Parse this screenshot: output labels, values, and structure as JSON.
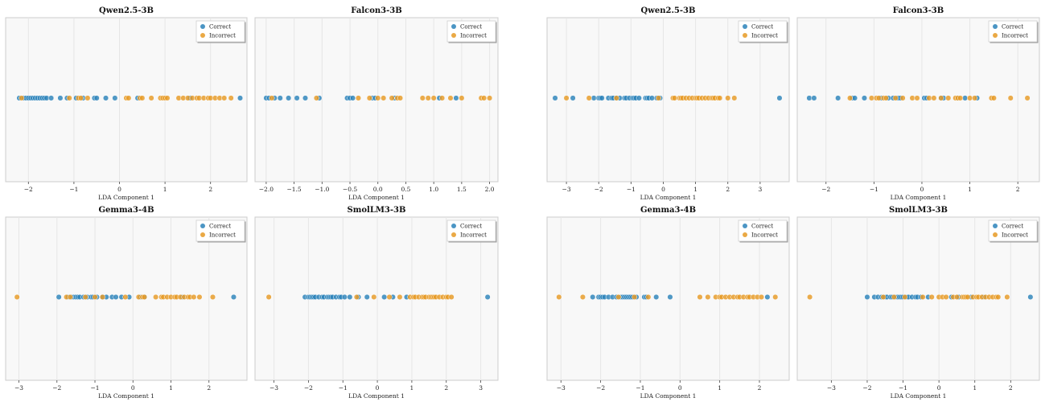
{
  "colors": {
    "correct": "#2b83ba",
    "incorrect": "#e69a24"
  },
  "chart_data": [
    {
      "type": "scatter",
      "title": "Qwen2.5-3B",
      "xlabel": "LDA Component 1",
      "xlim": [
        -2.5,
        2.8
      ],
      "xticks": [
        -2,
        -1,
        0,
        1,
        2
      ],
      "tick_labels": [
        "−2",
        "−1",
        "0",
        "1",
        "2"
      ],
      "legend": {
        "position": "top-right",
        "entries": [
          "Correct",
          "Incorrect"
        ]
      },
      "series": [
        {
          "name": "Correct",
          "values": [
            -2.2,
            -2.1,
            -2.05,
            -2.0,
            -1.95,
            -1.9,
            -1.85,
            -1.8,
            -1.75,
            -1.7,
            -1.65,
            -1.6,
            -1.5,
            -1.3,
            -1.15,
            -0.95,
            -0.8,
            -0.55,
            -0.5,
            -0.3,
            -0.1,
            0.4,
            1.55,
            2.65
          ]
        },
        {
          "name": "Incorrect",
          "values": [
            -2.15,
            -1.1,
            -0.9,
            -0.85,
            -0.7,
            0.15,
            0.2,
            0.45,
            0.5,
            0.7,
            0.9,
            0.95,
            1.0,
            1.05,
            1.3,
            1.4,
            1.5,
            1.6,
            1.7,
            1.75,
            1.85,
            1.95,
            2.0,
            2.1,
            2.2,
            2.3,
            2.45
          ]
        }
      ]
    },
    {
      "type": "scatter",
      "title": "Falcon3-3B",
      "xlabel": "LDA Component 1",
      "xlim": [
        -2.2,
        2.15
      ],
      "xticks": [
        -2.0,
        -1.5,
        -1.0,
        -0.5,
        0.0,
        0.5,
        1.0,
        1.5,
        2.0
      ],
      "tick_labels": [
        "−2.0",
        "−1.5",
        "−1.0",
        "−0.5",
        "0.0",
        "0.5",
        "1.0",
        "1.5",
        "2.0"
      ],
      "legend": {
        "position": "top-right",
        "entries": [
          "Correct",
          "Incorrect"
        ]
      },
      "series": [
        {
          "name": "Correct",
          "values": [
            -2.0,
            -1.95,
            -1.85,
            -1.75,
            -1.6,
            -1.45,
            -1.3,
            -1.05,
            -0.55,
            -0.5,
            -0.45,
            -0.1,
            -0.05,
            0.3,
            1.1,
            1.4
          ]
        },
        {
          "name": "Incorrect",
          "values": [
            -1.9,
            -1.1,
            -0.35,
            -0.15,
            0.0,
            0.1,
            0.25,
            0.35,
            0.4,
            0.8,
            0.9,
            1.0,
            1.15,
            1.3,
            1.5,
            1.85,
            1.9,
            2.0
          ]
        }
      ]
    },
    {
      "type": "scatter",
      "title": "Qwen2.5-3B",
      "xlabel": "LDA Component 1",
      "xlim": [
        -3.6,
        3.9
      ],
      "xticks": [
        -3,
        -2,
        -1,
        0,
        1,
        2,
        3
      ],
      "tick_labels": [
        "−3",
        "−2",
        "−1",
        "0",
        "1",
        "2",
        "3"
      ],
      "legend": {
        "position": "top-right",
        "entries": [
          "Correct",
          "Incorrect"
        ]
      },
      "series": [
        {
          "name": "Correct",
          "values": [
            -3.35,
            -2.8,
            -2.15,
            -2.0,
            -1.95,
            -1.9,
            -1.7,
            -1.6,
            -1.55,
            -1.45,
            -1.35,
            -1.2,
            -1.15,
            -1.05,
            -0.95,
            -0.9,
            -0.85,
            -0.75,
            -0.55,
            -0.5,
            -0.45,
            -0.35,
            -0.2,
            -0.1,
            3.6
          ]
        },
        {
          "name": "Incorrect",
          "values": [
            -3.0,
            -2.3,
            -1.45,
            -0.15,
            0.3,
            0.35,
            0.5,
            0.55,
            0.6,
            0.7,
            0.8,
            0.9,
            1.0,
            1.05,
            1.1,
            1.2,
            1.3,
            1.4,
            1.5,
            1.55,
            1.6,
            1.7,
            1.75,
            2.0,
            2.2
          ]
        }
      ]
    },
    {
      "type": "scatter",
      "title": "Falcon3-3B",
      "xlabel": "LDA Component 1",
      "xlim": [
        -2.6,
        2.45
      ],
      "xticks": [
        -2,
        -1,
        0,
        1,
        2
      ],
      "tick_labels": [
        "−2",
        "−1",
        "0",
        "1",
        "2"
      ],
      "legend": {
        "position": "top-right",
        "entries": [
          "Correct",
          "Incorrect"
        ]
      },
      "series": [
        {
          "name": "Correct",
          "values": [
            -2.35,
            -2.25,
            -1.75,
            -1.45,
            -1.4,
            -1.2,
            -0.85,
            -0.7,
            -0.6,
            -0.5,
            -0.45,
            0.05,
            0.1,
            0.4,
            0.45,
            0.75,
            0.9,
            1.15
          ]
        },
        {
          "name": "Incorrect",
          "values": [
            -1.5,
            -1.05,
            -0.95,
            -0.9,
            -0.8,
            -0.75,
            -0.55,
            -0.4,
            -0.2,
            -0.1,
            0.15,
            0.25,
            0.4,
            0.55,
            0.7,
            0.75,
            0.8,
            1.0,
            1.1,
            1.45,
            1.5,
            1.85,
            2.2
          ]
        }
      ]
    },
    {
      "type": "scatter",
      "title": "Gemma3-4B",
      "xlabel": "LDA Component 1",
      "xlim": [
        -3.35,
        3.0
      ],
      "xticks": [
        -3,
        -2,
        -1,
        0,
        1,
        2
      ],
      "tick_labels": [
        "−3",
        "−2",
        "−1",
        "0",
        "1",
        "2"
      ],
      "legend": {
        "position": "top-right",
        "entries": [
          "Correct",
          "Incorrect"
        ]
      },
      "series": [
        {
          "name": "Correct",
          "values": [
            -1.95,
            -1.7,
            -1.6,
            -1.55,
            -1.5,
            -1.45,
            -1.4,
            -1.3,
            -1.2,
            -1.1,
            -1.05,
            -0.95,
            -0.8,
            -0.7,
            -0.55,
            -0.45,
            -0.3,
            -0.1,
            0.2,
            0.3,
            1.3,
            2.65
          ]
        },
        {
          "name": "Incorrect",
          "values": [
            -3.05,
            -1.75,
            -1.65,
            -1.25,
            -1.0,
            -0.8,
            -0.2,
            0.15,
            0.25,
            0.3,
            0.6,
            0.75,
            0.8,
            0.9,
            1.0,
            1.1,
            1.15,
            1.25,
            1.35,
            1.45,
            1.5,
            1.6,
            1.75,
            2.1
          ]
        }
      ]
    },
    {
      "type": "scatter",
      "title": "SmolLM3-3B",
      "xlabel": "LDA Component 1",
      "xlim": [
        -3.55,
        3.5
      ],
      "xticks": [
        -3,
        -2,
        -1,
        0,
        1,
        2,
        3
      ],
      "tick_labels": [
        "−3",
        "−2",
        "−1",
        "0",
        "1",
        "2",
        "3"
      ],
      "legend": {
        "position": "top-right",
        "entries": [
          "Correct",
          "Incorrect"
        ]
      },
      "series": [
        {
          "name": "Correct",
          "values": [
            -2.1,
            -2.0,
            -1.95,
            -1.9,
            -1.85,
            -1.8,
            -1.7,
            -1.6,
            -1.55,
            -1.45,
            -1.4,
            -1.35,
            -1.3,
            -1.2,
            -1.1,
            -1.05,
            -0.95,
            -0.8,
            -0.55,
            -0.3,
            0.2,
            0.45,
            0.85,
            3.2
          ]
        },
        {
          "name": "Incorrect",
          "values": [
            -3.15,
            -0.6,
            -0.1,
            0.35,
            0.65,
            0.95,
            1.05,
            1.1,
            1.2,
            1.3,
            1.35,
            1.4,
            1.5,
            1.55,
            1.6,
            1.65,
            1.7,
            1.8,
            1.9,
            2.0,
            2.05,
            2.15
          ]
        }
      ]
    },
    {
      "type": "scatter",
      "title": "Gemma3-4B",
      "xlabel": "LDA Component 1",
      "xlim": [
        -3.35,
        2.75
      ],
      "xticks": [
        -3,
        -2,
        -1,
        0,
        1,
        2
      ],
      "tick_labels": [
        "−3",
        "−2",
        "−1",
        "0",
        "1",
        "2"
      ],
      "legend": {
        "position": "top-right",
        "entries": [
          "Correct",
          "Incorrect"
        ]
      },
      "series": [
        {
          "name": "Correct",
          "values": [
            -2.2,
            -2.05,
            -2.0,
            -1.95,
            -1.9,
            -1.8,
            -1.7,
            -1.6,
            -1.5,
            -1.45,
            -1.4,
            -1.35,
            -1.3,
            -1.25,
            -1.2,
            -1.1,
            -0.9,
            -0.85,
            -0.6,
            -0.25,
            2.2
          ]
        },
        {
          "name": "Incorrect",
          "values": [
            -3.05,
            -2.45,
            -1.55,
            -1.15,
            -0.8,
            0.5,
            0.7,
            0.9,
            1.0,
            1.05,
            1.15,
            1.25,
            1.35,
            1.45,
            1.5,
            1.6,
            1.7,
            1.75,
            1.85,
            1.95,
            2.05,
            2.4
          ]
        }
      ]
    },
    {
      "type": "scatter",
      "title": "SmolLM3-3B",
      "xlabel": "LDA Component 1",
      "xlim": [
        -3.95,
        2.8
      ],
      "xticks": [
        -3,
        -2,
        -1,
        0,
        1,
        2
      ],
      "tick_labels": [
        "−3",
        "−2",
        "−1",
        "0",
        "1",
        "2"
      ],
      "legend": {
        "position": "top-right",
        "entries": [
          "Correct",
          "Incorrect"
        ]
      },
      "series": [
        {
          "name": "Correct",
          "values": [
            -2.0,
            -1.8,
            -1.7,
            -1.6,
            -1.55,
            -1.5,
            -1.45,
            -1.35,
            -1.3,
            -1.2,
            -1.15,
            -1.1,
            -1.05,
            -1.0,
            -0.9,
            -0.85,
            -0.75,
            -0.65,
            -0.6,
            -0.5,
            -0.3,
            0.35,
            0.55,
            0.9,
            1.25,
            2.55
          ]
        },
        {
          "name": "Incorrect",
          "values": [
            -3.6,
            -1.55,
            -1.25,
            -0.95,
            -0.45,
            -0.2,
            0.0,
            0.1,
            0.2,
            0.4,
            0.5,
            0.65,
            0.7,
            0.75,
            0.8,
            0.95,
            1.05,
            1.1,
            1.2,
            1.3,
            1.4,
            1.5,
            1.6,
            1.65,
            1.9
          ]
        }
      ]
    }
  ]
}
